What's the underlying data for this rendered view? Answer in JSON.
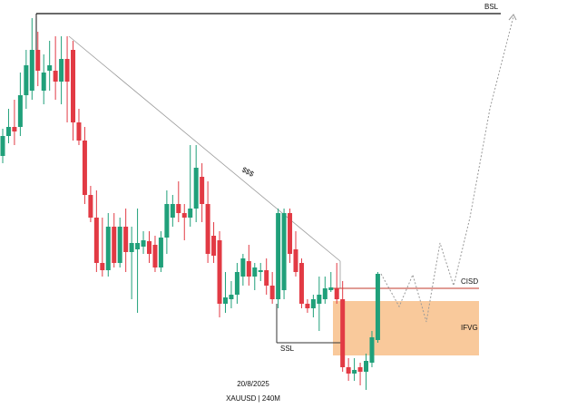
{
  "chart_data": {
    "type": "candlestick",
    "up_color": "#20a07a",
    "down_color": "#e23a44",
    "ylim": [
      0,
      461
    ],
    "open": [
      289,
      311,
      321,
      321,
      356,
      361,
      406,
      361,
      383,
      383,
      371,
      396,
      406,
      326,
      306,
      246,
      221,
      171,
      163,
      211,
      171,
      211,
      183,
      186,
      189,
      195,
      191,
      166,
      199,
      221,
      236,
      226,
      221,
      231,
      266,
      236,
      201,
      196,
      126,
      131,
      136,
      156,
      173,
      156,
      161,
      163,
      146,
      131,
      141,
      226,
      186,
      171,
      126,
      121,
      126,
      131,
      141,
      143,
      131,
      56,
      49,
      56,
      51,
      61,
      86
    ],
    "high": [
      319,
      341,
      351,
      381,
      406,
      441,
      426,
      401,
      416,
      421,
      421,
      421,
      416,
      341,
      321,
      256,
      251,
      221,
      226,
      226,
      221,
      231,
      211,
      231,
      206,
      206,
      201,
      206,
      251,
      246,
      261,
      236,
      301,
      301,
      281,
      261,
      216,
      206,
      161,
      151,
      171,
      181,
      191,
      171,
      171,
      176,
      161,
      231,
      231,
      231,
      206,
      176,
      131,
      136,
      156,
      156,
      161,
      171,
      151,
      66,
      66,
      61,
      71,
      96,
      161
    ],
    "low": [
      281,
      303,
      301,
      311,
      341,
      351,
      366,
      346,
      361,
      351,
      346,
      326,
      306,
      301,
      236,
      216,
      161,
      156,
      156,
      166,
      166,
      161,
      131,
      116,
      181,
      171,
      161,
      161,
      181,
      211,
      216,
      196,
      211,
      216,
      216,
      171,
      171,
      111,
      116,
      121,
      126,
      146,
      146,
      141,
      151,
      136,
      126,
      121,
      131,
      171,
      156,
      121,
      116,
      111,
      96,
      126,
      139,
      126,
      51,
      41,
      41,
      36,
      31,
      56,
      83
    ],
    "close": [
      311,
      321,
      316,
      356,
      389,
      406,
      383,
      381,
      389,
      371,
      396,
      371,
      326,
      306,
      246,
      221,
      171,
      163,
      211,
      171,
      211,
      183,
      193,
      193,
      196,
      181,
      166,
      199,
      236,
      236,
      226,
      221,
      231,
      276,
      236,
      181,
      179,
      126,
      133,
      136,
      161,
      176,
      156,
      166,
      163,
      146,
      131,
      226,
      226,
      181,
      161,
      126,
      121,
      131,
      136,
      143,
      144,
      131,
      56,
      49,
      53,
      51,
      63,
      89,
      159
    ],
    "annotations": {
      "bsl": "BSL",
      "liquidity": "$$$",
      "cisd": "CISD",
      "ifvg": "IFVG",
      "ssl": "SSL"
    },
    "date": "20/8/2025",
    "symbol": "XAUUSD | 240M"
  }
}
